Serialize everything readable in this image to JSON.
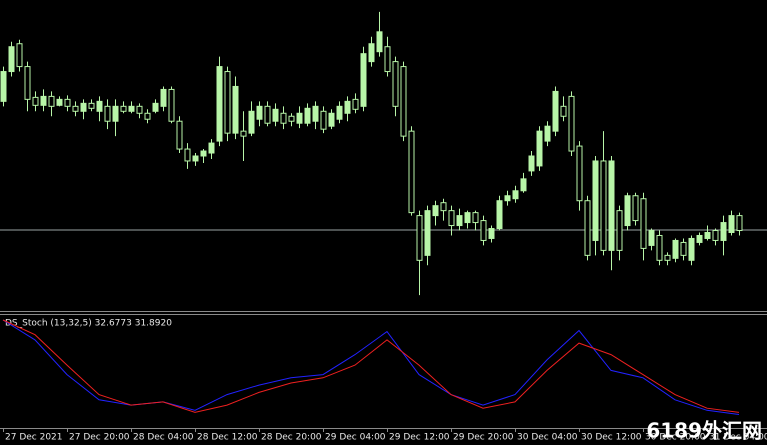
{
  "chart_data": {
    "type": "candlestick",
    "ylim": [
      0,
      310
    ],
    "hline": 81,
    "hline_color": "#9aa5a5",
    "up_color": "#b8f5a8",
    "down_color": "#000000",
    "wick_color": "#b8f5a8",
    "candles": [
      [
        210,
        245,
        205,
        240
      ],
      [
        240,
        270,
        235,
        265
      ],
      [
        268,
        272,
        240,
        245
      ],
      [
        245,
        250,
        200,
        212
      ],
      [
        214,
        220,
        200,
        206
      ],
      [
        206,
        222,
        200,
        215
      ],
      [
        215,
        220,
        195,
        205
      ],
      [
        206,
        215,
        205,
        212
      ],
      [
        212,
        216,
        200,
        205
      ],
      [
        205,
        210,
        195,
        200
      ],
      [
        200,
        212,
        192,
        208
      ],
      [
        208,
        212,
        200,
        203
      ],
      [
        200,
        215,
        190,
        210
      ],
      [
        205,
        212,
        182,
        190
      ],
      [
        190,
        212,
        175,
        205
      ],
      [
        205,
        210,
        198,
        200
      ],
      [
        200,
        210,
        198,
        205
      ],
      [
        205,
        208,
        193,
        198
      ],
      [
        198,
        202,
        188,
        192
      ],
      [
        200,
        212,
        198,
        208
      ],
      [
        205,
        225,
        200,
        222
      ],
      [
        222,
        225,
        188,
        190
      ],
      [
        190,
        195,
        158,
        162
      ],
      [
        162,
        168,
        142,
        150
      ],
      [
        150,
        158,
        145,
        155
      ],
      [
        155,
        162,
        148,
        160
      ],
      [
        158,
        172,
        152,
        168
      ],
      [
        170,
        255,
        165,
        245
      ],
      [
        240,
        245,
        170,
        178
      ],
      [
        178,
        235,
        172,
        225
      ],
      [
        180,
        200,
        150,
        175
      ],
      [
        178,
        210,
        175,
        200
      ],
      [
        192,
        210,
        185,
        205
      ],
      [
        205,
        210,
        185,
        188
      ],
      [
        190,
        208,
        185,
        202
      ],
      [
        198,
        205,
        182,
        188
      ],
      [
        195,
        198,
        185,
        190
      ],
      [
        188,
        205,
        183,
        198
      ],
      [
        188,
        208,
        185,
        203
      ],
      [
        190,
        210,
        182,
        205
      ],
      [
        200,
        205,
        178,
        182
      ],
      [
        185,
        202,
        182,
        198
      ],
      [
        192,
        210,
        188,
        205
      ],
      [
        198,
        215,
        190,
        210
      ],
      [
        212,
        218,
        198,
        202
      ],
      [
        205,
        265,
        200,
        258
      ],
      [
        250,
        275,
        245,
        268
      ],
      [
        260,
        300,
        255,
        280
      ],
      [
        265,
        275,
        235,
        240
      ],
      [
        250,
        255,
        195,
        205
      ],
      [
        245,
        250,
        170,
        175
      ],
      [
        180,
        185,
        95,
        98
      ],
      [
        95,
        100,
        15,
        50
      ],
      [
        55,
        105,
        45,
        100
      ],
      [
        95,
        110,
        85,
        105
      ],
      [
        108,
        112,
        90,
        100
      ],
      [
        100,
        105,
        75,
        85
      ],
      [
        85,
        102,
        80,
        95
      ],
      [
        88,
        100,
        82,
        98
      ],
      [
        98,
        100,
        80,
        88
      ],
      [
        90,
        95,
        65,
        70
      ],
      [
        72,
        85,
        68,
        82
      ],
      [
        82,
        115,
        80,
        110
      ],
      [
        110,
        120,
        105,
        115
      ],
      [
        112,
        125,
        108,
        120
      ],
      [
        120,
        138,
        118,
        132
      ],
      [
        140,
        160,
        135,
        155
      ],
      [
        145,
        185,
        140,
        180
      ],
      [
        170,
        190,
        165,
        185
      ],
      [
        180,
        225,
        175,
        220
      ],
      [
        205,
        215,
        190,
        195
      ],
      [
        215,
        220,
        155,
        160
      ],
      [
        165,
        170,
        100,
        110
      ],
      [
        110,
        115,
        50,
        55
      ],
      [
        70,
        155,
        55,
        150
      ],
      [
        150,
        180,
        55,
        60
      ],
      [
        60,
        155,
        40,
        150
      ],
      [
        100,
        105,
        50,
        60
      ],
      [
        85,
        118,
        80,
        115
      ],
      [
        115,
        118,
        85,
        90
      ],
      [
        112,
        118,
        50,
        62
      ],
      [
        65,
        82,
        60,
        80
      ],
      [
        75,
        80,
        45,
        50
      ],
      [
        55,
        58,
        45,
        50
      ],
      [
        52,
        72,
        48,
        70
      ],
      [
        68,
        72,
        50,
        55
      ],
      [
        50,
        75,
        45,
        72
      ],
      [
        68,
        78,
        65,
        75
      ],
      [
        72,
        85,
        70,
        78
      ],
      [
        80,
        82,
        65,
        70
      ],
      [
        70,
        95,
        55,
        88
      ],
      [
        78,
        100,
        75,
        95
      ],
      [
        95,
        98,
        75,
        80
      ]
    ],
    "categories": [
      "27 Dec 2021",
      "27 Dec 20:00",
      "28 Dec 04:00",
      "28 Dec 12:00",
      "28 Dec 20:00",
      "29 Dec 04:00",
      "29 Dec 12:00",
      "29 Dec 20:00",
      "30 Dec 04:00",
      "30 Dec 12:00",
      "30 Dec 20:00",
      "31 Dec 04:00"
    ],
    "indicator": {
      "type": "line",
      "title": "DS_Stoch (13,32,5) 32.6773 31.8920",
      "ylim": [
        0,
        100
      ],
      "series": [
        {
          "color": "#2222ff",
          "values": [
            100,
            81,
            48,
            24,
            19,
            22,
            14,
            29,
            38,
            45,
            48,
            67,
            89,
            48,
            29,
            19,
            29,
            62,
            90,
            52,
            45,
            24,
            14,
            10
          ]
        },
        {
          "color": "#ee2020",
          "values": [
            100,
            86,
            57,
            29,
            19,
            22,
            12,
            19,
            31,
            40,
            45,
            57,
            81,
            57,
            29,
            16,
            22,
            52,
            78,
            67,
            48,
            29,
            16,
            12
          ]
        }
      ]
    },
    "watermark": "6189外汇网"
  }
}
